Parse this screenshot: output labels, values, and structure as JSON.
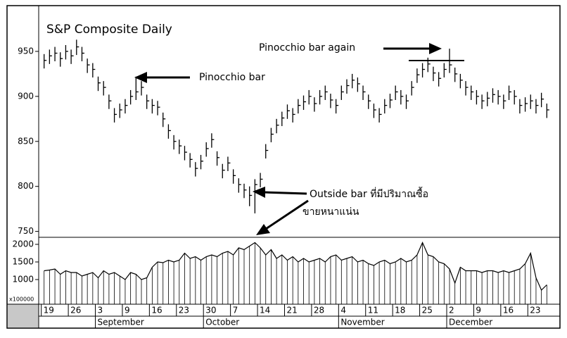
{
  "chart_data": {
    "type": "hlc",
    "title": "S&P Composite Daily",
    "annotations": [
      "Pinocchio bar again",
      "Pinocchio bar",
      "Outside bar ที่มีปริมาณซื้อ",
      "ขายหนาแน่น"
    ],
    "categories": [
      "19",
      null,
      null,
      null,
      null,
      "26",
      null,
      null,
      null,
      null,
      "3",
      null,
      null,
      null,
      null,
      "9",
      null,
      null,
      null,
      null,
      "16",
      null,
      null,
      null,
      null,
      "23",
      null,
      null,
      null,
      null,
      "30",
      null,
      null,
      null,
      null,
      "7",
      null,
      null,
      null,
      null,
      "14",
      null,
      null,
      null,
      null,
      "21",
      null,
      null,
      null,
      null,
      "28",
      null,
      null,
      null,
      null,
      "4",
      null,
      null,
      null,
      null,
      "11",
      null,
      null,
      null,
      null,
      "18",
      null,
      null,
      null,
      null,
      "25",
      null,
      null,
      null,
      null,
      "2",
      null,
      null,
      null,
      null,
      "9",
      null,
      null,
      null,
      null,
      "16",
      null,
      null,
      null,
      null,
      "23",
      null,
      null,
      null
    ],
    "month_ticks": [
      {
        "value": 10,
        "label": "September"
      },
      {
        "value": 30,
        "label": "October"
      },
      {
        "value": 55,
        "label": "November"
      },
      {
        "value": 75,
        "label": "December"
      }
    ],
    "close": [
      940,
      945,
      948,
      942,
      950,
      945,
      955,
      948,
      935,
      930,
      915,
      910,
      895,
      880,
      885,
      890,
      900,
      905,
      910,
      895,
      890,
      888,
      875,
      862,
      850,
      845,
      838,
      830,
      820,
      828,
      842,
      852,
      832,
      818,
      826,
      812,
      802,
      796,
      790,
      802,
      808,
      840,
      858,
      868,
      876,
      884,
      880,
      890,
      894,
      900,
      892,
      900,
      905,
      896,
      890,
      905,
      912,
      918,
      914,
      905,
      895,
      885,
      880,
      890,
      896,
      905,
      900,
      895,
      910,
      924,
      930,
      936,
      926,
      920,
      930,
      935,
      925,
      918,
      910,
      905,
      900,
      895,
      898,
      902,
      900,
      895,
      905,
      900,
      890,
      892,
      895,
      890,
      897,
      885
    ],
    "high": [
      947,
      952,
      955,
      949,
      957,
      952,
      963,
      955,
      942,
      937,
      922,
      917,
      902,
      887,
      892,
      897,
      907,
      922,
      917,
      902,
      897,
      895,
      882,
      869,
      857,
      852,
      845,
      837,
      827,
      835,
      849,
      859,
      839,
      825,
      833,
      819,
      809,
      803,
      800,
      808,
      815,
      847,
      865,
      875,
      883,
      891,
      887,
      897,
      901,
      907,
      899,
      907,
      912,
      903,
      897,
      912,
      919,
      925,
      921,
      912,
      902,
      892,
      887,
      897,
      903,
      912,
      907,
      902,
      917,
      931,
      937,
      943,
      933,
      927,
      937,
      953,
      932,
      925,
      917,
      912,
      907,
      902,
      905,
      909,
      907,
      902,
      912,
      907,
      897,
      899,
      902,
      897,
      904,
      892
    ],
    "low": [
      931,
      936,
      939,
      933,
      941,
      936,
      946,
      939,
      926,
      921,
      906,
      901,
      886,
      871,
      876,
      881,
      891,
      896,
      901,
      886,
      881,
      879,
      866,
      853,
      841,
      836,
      829,
      821,
      811,
      819,
      833,
      843,
      823,
      809,
      817,
      803,
      793,
      787,
      778,
      770,
      799,
      831,
      849,
      859,
      867,
      875,
      871,
      881,
      885,
      891,
      883,
      891,
      896,
      887,
      881,
      896,
      903,
      909,
      905,
      896,
      886,
      876,
      871,
      881,
      887,
      896,
      891,
      886,
      901,
      915,
      921,
      927,
      917,
      911,
      921,
      926,
      916,
      909,
      901,
      896,
      891,
      886,
      889,
      893,
      891,
      886,
      896,
      891,
      881,
      883,
      886,
      881,
      888,
      876
    ],
    "ylim": [
      745,
      993
    ],
    "yticks": [
      750,
      800,
      850,
      900,
      950
    ],
    "volume": {
      "label": "x100000",
      "ylim": [
        300,
        2140
      ],
      "yticks": [
        1000,
        1500,
        2000
      ],
      "values": [
        1250,
        1270,
        1300,
        1150,
        1250,
        1200,
        1200,
        1100,
        1150,
        1200,
        1050,
        1250,
        1150,
        1200,
        1100,
        1000,
        1200,
        1150,
        1000,
        1050,
        1350,
        1500,
        1480,
        1550,
        1500,
        1550,
        1750,
        1600,
        1650,
        1550,
        1650,
        1700,
        1650,
        1750,
        1800,
        1700,
        1900,
        1850,
        1950,
        2050,
        1900,
        1700,
        1850,
        1600,
        1700,
        1550,
        1650,
        1500,
        1600,
        1500,
        1550,
        1600,
        1500,
        1650,
        1700,
        1550,
        1600,
        1650,
        1500,
        1550,
        1450,
        1400,
        1500,
        1550,
        1450,
        1500,
        1600,
        1500,
        1550,
        1700,
        2050,
        1700,
        1650,
        1500,
        1450,
        1300,
        900,
        1350,
        1250,
        1250,
        1250,
        1200,
        1250,
        1250,
        1200,
        1250,
        1200,
        1250,
        1300,
        1450,
        1750,
        1050,
        700,
        850
      ]
    },
    "color": "#000000"
  }
}
